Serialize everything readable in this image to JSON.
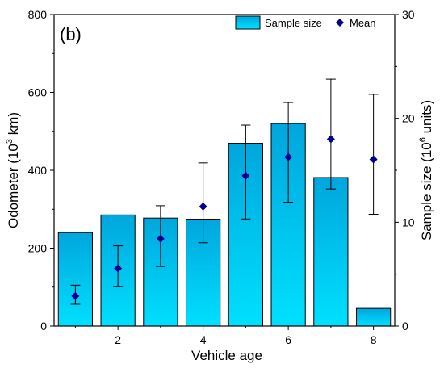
{
  "chart_data": {
    "type": "bar",
    "panel_label": "(b)",
    "xlabel": "Vehicle age",
    "ylabel_left": {
      "base": "Odometer (10",
      "sup": "3",
      "tail": " km)"
    },
    "ylabel_right": {
      "base": "Sample size (10",
      "sup": "6",
      "tail": " units)"
    },
    "x_ticks": [
      "2",
      "4",
      "6",
      "8"
    ],
    "y_left_ticks": [
      "0",
      "200",
      "400",
      "600",
      "800"
    ],
    "y_right_ticks": [
      "0",
      "10",
      "20",
      "30"
    ],
    "xlim": [
      0.5,
      8.5
    ],
    "ylim_left": [
      0,
      800
    ],
    "ylim_right": [
      0,
      30
    ],
    "legend": {
      "position": "top-right",
      "bar_label": "Sample size",
      "marker_label": "Mean"
    },
    "colors": {
      "bar_top": "#00a6dd",
      "bar_bottom": "#00e0ff",
      "bar_stroke": "#000000",
      "mean_marker": "#00008b",
      "error_bar": "#000000"
    },
    "sample_size": {
      "x": [
        1,
        2,
        3,
        4,
        5,
        6,
        7,
        8
      ],
      "values": [
        9.0,
        10.7,
        10.4,
        10.3,
        17.6,
        19.5,
        14.3,
        1.7
      ]
    },
    "mean": {
      "x": [
        1,
        2,
        3,
        4,
        5,
        6,
        7,
        8
      ],
      "values": [
        77,
        148,
        224,
        307,
        386,
        434,
        480,
        428
      ],
      "error_low": [
        56,
        101,
        153,
        214,
        275,
        318,
        352,
        287
      ],
      "error_high": [
        105,
        206,
        309,
        419,
        516,
        574,
        634,
        595
      ]
    }
  }
}
